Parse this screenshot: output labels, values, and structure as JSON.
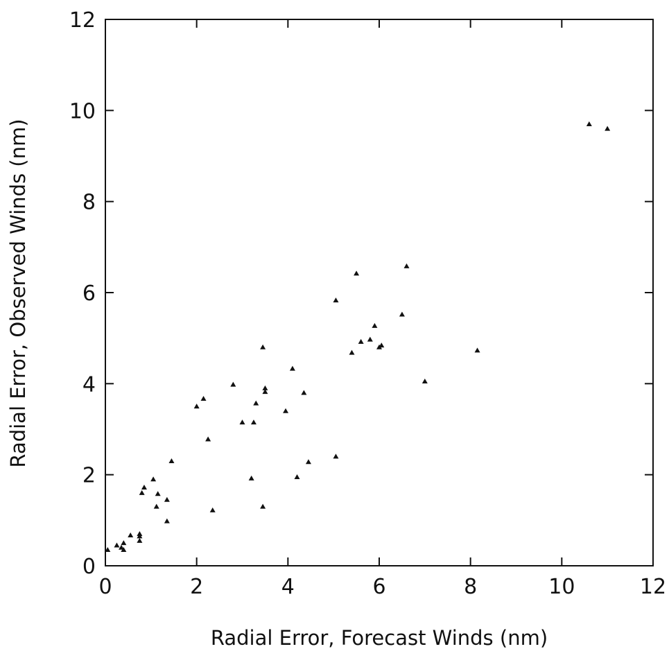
{
  "chart_data": {
    "type": "scatter",
    "xlabel": "Radial Error, Forecast Winds (nm)",
    "ylabel": "Radial Error, Observed Winds (nm)",
    "xlim": [
      0,
      12
    ],
    "ylim": [
      0,
      12
    ],
    "xticks": [
      0,
      2,
      4,
      6,
      8,
      10,
      12
    ],
    "yticks": [
      0,
      2,
      4,
      6,
      8,
      10,
      12
    ],
    "marker": "triangle",
    "grid": false,
    "series": [
      {
        "points": [
          [
            0.05,
            0.35
          ],
          [
            0.25,
            0.45
          ],
          [
            0.35,
            0.4
          ],
          [
            0.4,
            0.35
          ],
          [
            0.4,
            0.5
          ],
          [
            0.55,
            0.67
          ],
          [
            0.75,
            0.55
          ],
          [
            0.75,
            0.7
          ],
          [
            0.75,
            0.65
          ],
          [
            0.8,
            1.6
          ],
          [
            0.85,
            1.72
          ],
          [
            1.05,
            1.9
          ],
          [
            1.12,
            1.3
          ],
          [
            1.15,
            1.58
          ],
          [
            1.35,
            1.45
          ],
          [
            1.35,
            0.98
          ],
          [
            1.45,
            2.3
          ],
          [
            2.0,
            3.5
          ],
          [
            2.15,
            3.67
          ],
          [
            2.25,
            2.78
          ],
          [
            2.35,
            1.22
          ],
          [
            2.8,
            3.98
          ],
          [
            3.0,
            3.15
          ],
          [
            3.2,
            1.92
          ],
          [
            3.25,
            3.15
          ],
          [
            3.3,
            3.57
          ],
          [
            3.45,
            4.8
          ],
          [
            3.45,
            1.3
          ],
          [
            3.5,
            3.9
          ],
          [
            3.5,
            3.82
          ],
          [
            3.95,
            3.4
          ],
          [
            4.1,
            4.33
          ],
          [
            4.2,
            1.95
          ],
          [
            4.35,
            3.8
          ],
          [
            4.45,
            2.28
          ],
          [
            5.05,
            5.83
          ],
          [
            5.05,
            2.4
          ],
          [
            5.4,
            4.68
          ],
          [
            5.5,
            6.42
          ],
          [
            5.6,
            4.92
          ],
          [
            5.8,
            4.97
          ],
          [
            5.9,
            5.27
          ],
          [
            6.0,
            4.8
          ],
          [
            6.05,
            4.84
          ],
          [
            6.5,
            5.52
          ],
          [
            6.6,
            6.58
          ],
          [
            7.0,
            4.05
          ],
          [
            8.15,
            4.73
          ],
          [
            10.6,
            9.7
          ],
          [
            11.0,
            9.6
          ]
        ]
      }
    ]
  }
}
